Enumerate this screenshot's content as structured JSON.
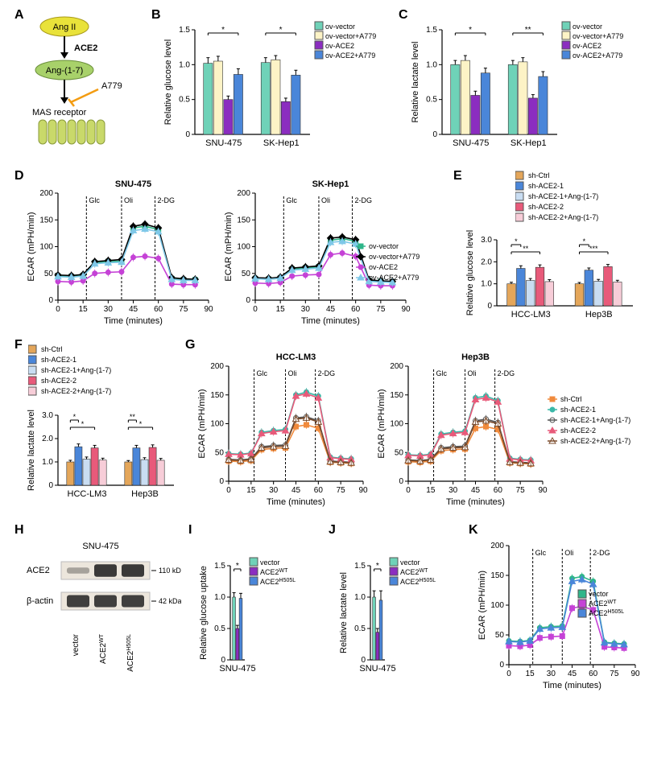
{
  "panelA": {
    "label": "A",
    "node_top": "Ang II",
    "enzyme": "ACE2",
    "mid_node": "Ang-(1-7)",
    "inhibitor": "A779",
    "receptor": "MAS receptor",
    "colors": {
      "top_fill": "#e9e23a",
      "mid_fill": "#a8d16a",
      "arrow": "#000000",
      "inhibitor": "#f39c12"
    }
  },
  "panelB": {
    "label": "B",
    "type": "bar",
    "ylabel": "Relative glucose level",
    "categories": [
      "SNU-475",
      "SK-Hep1"
    ],
    "series": [
      "ov-vector",
      "ov-vector+A779",
      "ov-ACE2",
      "ov-ACE2+A779"
    ],
    "series_colors": [
      "#6fd2b8",
      "#fdf3c6",
      "#8b2dc0",
      "#4a86d9"
    ],
    "values": [
      [
        1.02,
        1.05,
        0.5,
        0.86
      ],
      [
        1.03,
        1.07,
        0.47,
        0.85
      ]
    ],
    "errors": [
      [
        0.08,
        0.07,
        0.05,
        0.08
      ],
      [
        0.07,
        0.06,
        0.05,
        0.07
      ]
    ],
    "ylim": [
      0,
      1.5
    ],
    "ytick_step": 0.5,
    "sig": "*"
  },
  "panelC": {
    "label": "C",
    "type": "bar",
    "ylabel": "Relative lactate level",
    "categories": [
      "SNU-475",
      "SK-Hep1"
    ],
    "series": [
      "ov-vector",
      "ov-vector+A779",
      "ov-ACE2",
      "ov-ACE2+A779"
    ],
    "series_colors": [
      "#6fd2b8",
      "#fdf3c6",
      "#8b2dc0",
      "#4a86d9"
    ],
    "values": [
      [
        1.0,
        1.06,
        0.56,
        0.88
      ],
      [
        1.0,
        1.04,
        0.52,
        0.83
      ]
    ],
    "errors": [
      [
        0.06,
        0.07,
        0.06,
        0.07
      ],
      [
        0.06,
        0.06,
        0.05,
        0.07
      ]
    ],
    "ylim": [
      0,
      1.5
    ],
    "ytick_step": 0.5,
    "sig1": "*",
    "sig2": "**"
  },
  "panelD": {
    "label": "D",
    "type": "line",
    "ylabel": "ECAR (mPH/min)",
    "xlabel": "Time (minutes)",
    "subtitles": [
      "SNU-475",
      "SK-Hep1"
    ],
    "injections": [
      "Glc",
      "Oli",
      "2-DG"
    ],
    "inj_x": [
      17,
      38,
      58
    ],
    "x": [
      0,
      8,
      15,
      22,
      30,
      38,
      45,
      52,
      60,
      68,
      75,
      82
    ],
    "xlim": [
      0,
      90
    ],
    "xtick_step": 15,
    "ylim": [
      0,
      200
    ],
    "ytick_step": 50,
    "series": [
      "ov-vector",
      "ov-vector+A779",
      "ov-ACE2",
      "ov-ACE2+A779"
    ],
    "series_colors": [
      "#2fb68a",
      "#000000",
      "#c542d6",
      "#7fc8e8"
    ],
    "markers": [
      "square",
      "diamond",
      "circle",
      "triangle"
    ],
    "data1": {
      "ov-vector": [
        45,
        44,
        46,
        70,
        72,
        73,
        135,
        138,
        132,
        40,
        38,
        38
      ],
      "ov-vector+A779": [
        47,
        46,
        48,
        72,
        74,
        76,
        138,
        142,
        135,
        42,
        40,
        39
      ],
      "ov-ACE2": [
        35,
        34,
        36,
        50,
        52,
        53,
        80,
        82,
        78,
        30,
        29,
        29
      ],
      "ov-ACE2+A779": [
        44,
        43,
        45,
        68,
        70,
        71,
        130,
        133,
        128,
        39,
        37,
        37
      ]
    },
    "data2": {
      "ov-vector": [
        40,
        39,
        41,
        58,
        60,
        62,
        112,
        115,
        110,
        36,
        35,
        34
      ],
      "ov-vector+A779": [
        42,
        41,
        43,
        60,
        62,
        64,
        116,
        118,
        113,
        38,
        36,
        35
      ],
      "ov-ACE2": [
        32,
        31,
        33,
        45,
        47,
        48,
        85,
        88,
        82,
        28,
        27,
        27
      ],
      "ov-ACE2+A779": [
        40,
        39,
        41,
        56,
        58,
        60,
        108,
        110,
        105,
        35,
        34,
        33
      ]
    }
  },
  "panelE": {
    "label": "E",
    "type": "bar",
    "ylabel": "Relative glucose level",
    "categories": [
      "HCC-LM3",
      "Hep3B"
    ],
    "series": [
      "sh-Ctrl",
      "sh-ACE2-1",
      "sh-ACE2-1+Ang-(1-7)",
      "sh-ACE2-2",
      "sh-ACE2-2+Ang-(1-7)"
    ],
    "series_colors": [
      "#e4a65a",
      "#4a86d9",
      "#c9ddf2",
      "#e85a7a",
      "#f7cdd8"
    ],
    "values": [
      [
        1.0,
        1.7,
        1.15,
        1.75,
        1.1
      ],
      [
        1.0,
        1.62,
        1.12,
        1.78,
        1.08
      ]
    ],
    "errors": [
      [
        0.07,
        0.12,
        0.09,
        0.11,
        0.09
      ],
      [
        0.06,
        0.1,
        0.08,
        0.1,
        0.08
      ]
    ],
    "ylim": [
      0,
      3
    ],
    "ytick_step": 1,
    "sig_left": [
      "*",
      "*"
    ],
    "sig_right": [
      "**",
      "***"
    ]
  },
  "panelF": {
    "label": "F",
    "type": "bar",
    "ylabel": "Relative lactate level",
    "categories": [
      "HCC-LM3",
      "Hep3B"
    ],
    "series": [
      "sh-Ctrl",
      "sh-ACE2-1",
      "sh-ACE2-1+Ang-(1-7)",
      "sh-ACE2-2",
      "sh-ACE2-2+Ang-(1-7)"
    ],
    "series_colors": [
      "#e4a65a",
      "#4a86d9",
      "#c9ddf2",
      "#e85a7a",
      "#f7cdd8"
    ],
    "values": [
      [
        1.0,
        1.65,
        1.12,
        1.6,
        1.08
      ],
      [
        1.0,
        1.6,
        1.1,
        1.62,
        1.07
      ]
    ],
    "errors": [
      [
        0.07,
        0.12,
        0.09,
        0.11,
        0.08
      ],
      [
        0.06,
        0.11,
        0.08,
        0.11,
        0.08
      ]
    ],
    "ylim": [
      0,
      3
    ],
    "ytick_step": 1,
    "sig_left": [
      "*",
      "**"
    ],
    "sig_right": [
      "*",
      "*"
    ]
  },
  "panelG": {
    "label": "G",
    "type": "line",
    "ylabel": "ECAR (mPH/min)",
    "xlabel": "Time (minutes)",
    "subtitles": [
      "HCC-LM3",
      "Hep3B"
    ],
    "injections": [
      "Glc",
      "Oli",
      "2-DG"
    ],
    "inj_x": [
      17,
      38,
      58
    ],
    "x": [
      0,
      8,
      15,
      22,
      30,
      38,
      45,
      52,
      60,
      68,
      75,
      82
    ],
    "xlim": [
      0,
      90
    ],
    "xtick_step": 15,
    "ylim": [
      0,
      200
    ],
    "ytick_step": 50,
    "series": [
      "sh-Ctrl",
      "sh-ACE2-1",
      "sh-ACE2-1+Ang-(1-7)",
      "sh-ACE2-2",
      "sh-ACE2-2+Ang-(1-7)"
    ],
    "series_colors": [
      "#f08a3c",
      "#3bb8a8",
      "#555555",
      "#e85a7a",
      "#7a4a2a"
    ],
    "markers": [
      "square",
      "circle",
      "opencircle",
      "triangle",
      "opentriangle"
    ],
    "data1": {
      "sh-Ctrl": [
        35,
        34,
        36,
        55,
        57,
        58,
        95,
        98,
        92,
        33,
        32,
        31
      ],
      "sh-ACE2-1": [
        48,
        47,
        49,
        85,
        88,
        90,
        150,
        155,
        148,
        42,
        40,
        39
      ],
      "sh-ACE2-1+Ang-(1-7)": [
        38,
        37,
        39,
        60,
        62,
        63,
        110,
        112,
        105,
        35,
        34,
        33
      ],
      "sh-ACE2-2": [
        47,
        46,
        48,
        83,
        86,
        88,
        148,
        152,
        145,
        41,
        39,
        38
      ],
      "sh-ACE2-2+Ang-(1-7)": [
        37,
        36,
        38,
        58,
        60,
        61,
        108,
        110,
        103,
        34,
        33,
        32
      ]
    },
    "data2": {
      "sh-Ctrl": [
        34,
        33,
        35,
        53,
        55,
        56,
        92,
        95,
        90,
        32,
        31,
        30
      ],
      "sh-ACE2-1": [
        46,
        45,
        47,
        82,
        85,
        87,
        145,
        148,
        140,
        40,
        38,
        37
      ],
      "sh-ACE2-1+Ang-(1-7)": [
        37,
        36,
        38,
        58,
        60,
        61,
        105,
        108,
        102,
        34,
        33,
        32
      ],
      "sh-ACE2-2": [
        45,
        44,
        46,
        80,
        83,
        85,
        142,
        145,
        138,
        39,
        37,
        36
      ],
      "sh-ACE2-2+Ang-(1-7)": [
        36,
        35,
        37,
        56,
        58,
        59,
        103,
        105,
        100,
        33,
        32,
        31
      ]
    }
  },
  "panelH": {
    "label": "H",
    "cell": "SNU-475",
    "rows": [
      "ACE2",
      "β-actin"
    ],
    "markers": [
      "110 kDa",
      "42 kDa"
    ],
    "lanes": [
      "vector",
      "ACE2",
      "ACE2"
    ],
    "lane_sup": [
      "",
      "WT",
      "H505L"
    ],
    "band_intensity": {
      "ACE2": [
        0.15,
        0.95,
        0.95
      ],
      "β-actin": [
        0.9,
        0.9,
        0.9
      ]
    }
  },
  "panelI": {
    "label": "I",
    "type": "bar",
    "ylabel": "Relative glucose uptake",
    "categories": [
      "SNU-475"
    ],
    "series": [
      "vector",
      "ACE2WT",
      "ACE2H505L"
    ],
    "series_colors": [
      "#6fd2b8",
      "#8b2dc0",
      "#4a86d9"
    ],
    "values": [
      [
        1.0,
        0.5,
        0.98
      ]
    ],
    "errors": [
      [
        0.07,
        0.05,
        0.08
      ]
    ],
    "ylim": [
      0,
      1.5
    ],
    "ytick_step": 0.5,
    "sig": "*",
    "sup": [
      "",
      "WT",
      "H505L"
    ]
  },
  "panelJ": {
    "label": "J",
    "type": "bar",
    "ylabel": "Relative lactate level",
    "categories": [
      "SNU-475"
    ],
    "series": [
      "vector",
      "ACE2WT",
      "ACE2H505L"
    ],
    "series_colors": [
      "#6fd2b8",
      "#8b2dc0",
      "#4a86d9"
    ],
    "values": [
      [
        1.0,
        0.44,
        0.95
      ]
    ],
    "errors": [
      [
        0.1,
        0.06,
        0.15
      ]
    ],
    "ylim": [
      0,
      1.5
    ],
    "ytick_step": 0.5,
    "sig": "*",
    "sup": [
      "",
      "WT",
      "H505L"
    ]
  },
  "panelK": {
    "label": "K",
    "type": "line",
    "ylabel": "ECAR (mPH/min)",
    "xlabel": "Time (minutes)",
    "injections": [
      "Glc",
      "Oli",
      "2-DG"
    ],
    "inj_x": [
      17,
      38,
      58
    ],
    "x": [
      0,
      8,
      15,
      22,
      30,
      38,
      45,
      52,
      60,
      68,
      75,
      82
    ],
    "xlim": [
      0,
      90
    ],
    "xtick_step": 15,
    "ylim": [
      0,
      200
    ],
    "ytick_step": 50,
    "series": [
      "vector",
      "ACE2WT",
      "ACE2H505L"
    ],
    "series_colors": [
      "#2fb68a",
      "#c542d6",
      "#4a86d9"
    ],
    "markers": [
      "circle",
      "square",
      "triangle"
    ],
    "sup": [
      "",
      "WT",
      "H505L"
    ],
    "data": {
      "vector": [
        40,
        39,
        41,
        62,
        64,
        65,
        145,
        148,
        140,
        38,
        36,
        35
      ],
      "ACE2WT": [
        32,
        31,
        33,
        45,
        47,
        48,
        95,
        98,
        92,
        30,
        29,
        28
      ],
      "ACE2H505L": [
        39,
        38,
        40,
        60,
        62,
        63,
        140,
        143,
        135,
        37,
        35,
        34
      ]
    }
  }
}
